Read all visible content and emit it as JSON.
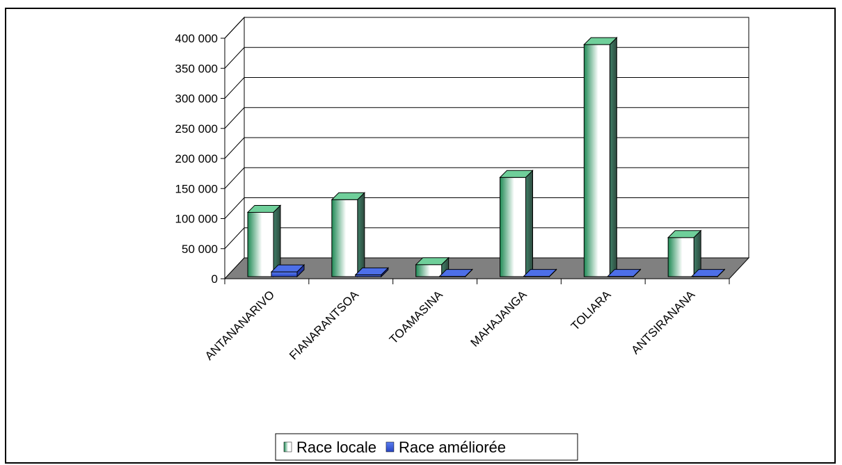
{
  "chart_data": {
    "type": "bar",
    "categories": [
      "ANTANANARIVO",
      "FIANARANTSOA",
      "TOAMASINA",
      "MAHAJANGA",
      "TOLIARA",
      "ANTSIRANANA"
    ],
    "series": [
      {
        "name": "Race locale",
        "values": [
          107000,
          128000,
          20000,
          165000,
          386000,
          65000
        ],
        "color": "#2e8b57"
      },
      {
        "name": "Race améliorée",
        "values": [
          8000,
          3000,
          500,
          500,
          500,
          500
        ],
        "color": "#3a5fd6"
      }
    ],
    "y_ticks": [
      0,
      50000,
      100000,
      150000,
      200000,
      250000,
      300000,
      350000,
      400000
    ],
    "y_tick_labels": [
      "0",
      "50 000",
      "100 000",
      "150 000",
      "200 000",
      "250 000",
      "300 000",
      "350 000",
      "400 000"
    ],
    "ylim": [
      0,
      400000
    ],
    "grid": true,
    "legend_position": "bottom",
    "floor_color": "#808080"
  }
}
